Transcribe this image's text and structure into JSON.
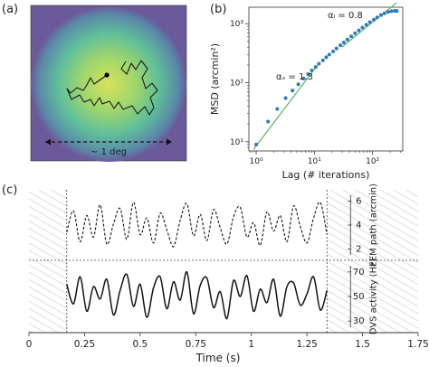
{
  "panels": {
    "a": {
      "letter": "(a)",
      "scale_label": "~ 1 deg"
    },
    "b": {
      "letter": "(b)"
    },
    "c": {
      "letter": "(c)"
    }
  },
  "chart_data": [
    {
      "panel": "a",
      "type": "heatmap",
      "description_visible": "circular density map with a fixational eye movement trajectory",
      "colors": {
        "center": "#d6e35a",
        "mid": "#5fbf9a",
        "edge": "#5a77a6",
        "background": "#6b5a9a",
        "path": "#1a1a1a"
      },
      "path_points": [
        [
          118,
          83
        ],
        [
          111,
          88
        ],
        [
          104,
          93
        ],
        [
          100,
          86
        ],
        [
          96,
          94
        ],
        [
          92,
          100
        ],
        [
          85,
          97
        ],
        [
          78,
          103
        ],
        [
          74,
          98
        ],
        [
          79,
          110
        ],
        [
          88,
          105
        ],
        [
          93,
          113
        ],
        [
          100,
          110
        ],
        [
          104,
          117
        ],
        [
          110,
          108
        ],
        [
          113,
          115
        ],
        [
          121,
          112
        ],
        [
          126,
          120
        ],
        [
          131,
          113
        ],
        [
          136,
          121
        ],
        [
          146,
          117
        ],
        [
          152,
          126
        ],
        [
          160,
          118
        ],
        [
          165,
          127
        ],
        [
          170,
          119
        ],
        [
          166,
          108
        ],
        [
          174,
          100
        ],
        [
          168,
          92
        ],
        [
          161,
          98
        ],
        [
          157,
          86
        ],
        [
          163,
          76
        ],
        [
          156,
          67
        ],
        [
          150,
          77
        ],
        [
          145,
          70
        ],
        [
          140,
          82
        ],
        [
          134,
          76
        ],
        [
          139,
          68
        ]
      ],
      "start_point": [
        118,
        83
      ]
    },
    {
      "panel": "b",
      "type": "scatter",
      "title": "",
      "xlabel": "Lag (# iterations)",
      "ylabel": "MSD (arcmin²)",
      "x_scale": "log",
      "y_scale": "log",
      "xlim": [
        0.75,
        330
      ],
      "ylim": [
        7,
        1900
      ],
      "x_ticks": [
        {
          "value": 1,
          "label": "10⁰"
        },
        {
          "value": 10,
          "label": "10¹"
        },
        {
          "value": 100,
          "label": "10²"
        }
      ],
      "y_ticks": [
        {
          "value": 10,
          "label": "10¹"
        },
        {
          "value": 100,
          "label": "10²"
        },
        {
          "value": 1000,
          "label": "10³"
        }
      ],
      "series": [
        {
          "color": "#2e7bb8",
          "x": [
            1,
            1.6,
            2.3,
            3.2,
            4.2,
            5.3,
            6.5,
            7.8,
            9,
            10.5,
            12,
            14,
            16,
            18,
            21,
            24,
            28,
            32,
            37,
            43,
            50,
            58,
            67,
            78,
            90,
            105,
            120,
            140,
            160,
            185,
            210,
            240,
            260
          ],
          "y": [
            9,
            22,
            36,
            55,
            74,
            94,
            118,
            140,
            162,
            185,
            210,
            240,
            270,
            300,
            340,
            380,
            430,
            480,
            540,
            610,
            690,
            770,
            860,
            960,
            1060,
            1170,
            1280,
            1400,
            1500,
            1580,
            1630,
            1650,
            1640
          ]
        }
      ],
      "fit_lines": [
        {
          "label": "αₛ = 1.3",
          "slope": 1.3,
          "x_range": [
            0.9,
            12
          ],
          "anchor": [
            1,
            8.5
          ],
          "color": "#4caf50"
        },
        {
          "label": "αₗ = 0.8",
          "slope": 0.8,
          "x_range": [
            30,
            260
          ],
          "anchor": [
            100,
            1060
          ],
          "color": "#4caf50"
        }
      ]
    },
    {
      "panel": "c",
      "type": "line",
      "xlabel": "Time (s)",
      "xlim": [
        0,
        1.75
      ],
      "x_ticks": [
        {
          "value": 0,
          "label": "0"
        },
        {
          "value": 0.25,
          "label": "0.25"
        },
        {
          "value": 0.5,
          "label": "0.5"
        },
        {
          "value": 0.75,
          "label": "0.75"
        },
        {
          "value": 1.0,
          "label": "1"
        },
        {
          "value": 1.25,
          "label": "1.25"
        },
        {
          "value": 1.5,
          "label": "1.5"
        },
        {
          "value": 1.75,
          "label": "1.75"
        }
      ],
      "shaded_regions": [
        [
          0,
          0.17
        ],
        [
          1.34,
          1.75
        ]
      ],
      "event_lines": [
        0.17,
        1.34
      ],
      "series": [
        {
          "axis_label": "FEM path (arcmin)",
          "style": "dashed",
          "ylim": [
            1.5,
            6.5
          ],
          "y_ticks": [
            2,
            4,
            6
          ],
          "x": [
            0.17,
            0.2,
            0.23,
            0.26,
            0.29,
            0.32,
            0.35,
            0.38,
            0.41,
            0.44,
            0.47,
            0.5,
            0.53,
            0.56,
            0.59,
            0.62,
            0.65,
            0.68,
            0.71,
            0.74,
            0.77,
            0.8,
            0.83,
            0.86,
            0.89,
            0.92,
            0.95,
            0.98,
            1.01,
            1.04,
            1.07,
            1.1,
            1.13,
            1.16,
            1.19,
            1.22,
            1.25,
            1.28,
            1.31,
            1.34
          ],
          "y": [
            3.4,
            5.2,
            2.6,
            4.8,
            3.0,
            5.7,
            2.4,
            4.1,
            5.4,
            2.8,
            5.9,
            3.2,
            4.6,
            2.5,
            5.0,
            3.6,
            2.2,
            4.4,
            5.8,
            3.1,
            4.9,
            2.7,
            5.3,
            3.8,
            2.4,
            4.7,
            5.5,
            3.0,
            4.2,
            2.3,
            5.1,
            3.5,
            4.8,
            2.6,
            5.6,
            3.9,
            2.5,
            4.6,
            5.9,
            3.2
          ]
        },
        {
          "axis_label": "DVS activity (Hz)",
          "style": "solid",
          "ylim": [
            25,
            75
          ],
          "y_ticks": [
            30,
            50,
            70
          ],
          "x": [
            0.17,
            0.2,
            0.23,
            0.26,
            0.29,
            0.32,
            0.35,
            0.38,
            0.41,
            0.44,
            0.47,
            0.5,
            0.53,
            0.56,
            0.59,
            0.62,
            0.65,
            0.68,
            0.71,
            0.74,
            0.77,
            0.8,
            0.83,
            0.86,
            0.89,
            0.92,
            0.95,
            0.98,
            1.01,
            1.04,
            1.07,
            1.1,
            1.13,
            1.16,
            1.19,
            1.22,
            1.25,
            1.28,
            1.31,
            1.34
          ],
          "y": [
            60,
            44,
            66,
            38,
            58,
            48,
            64,
            35,
            55,
            68,
            42,
            60,
            33,
            57,
            66,
            40,
            62,
            47,
            70,
            36,
            59,
            65,
            41,
            54,
            32,
            63,
            50,
            67,
            38,
            56,
            45,
            64,
            34,
            58,
            61,
            43,
            52,
            66,
            39,
            55
          ]
        }
      ]
    }
  ]
}
